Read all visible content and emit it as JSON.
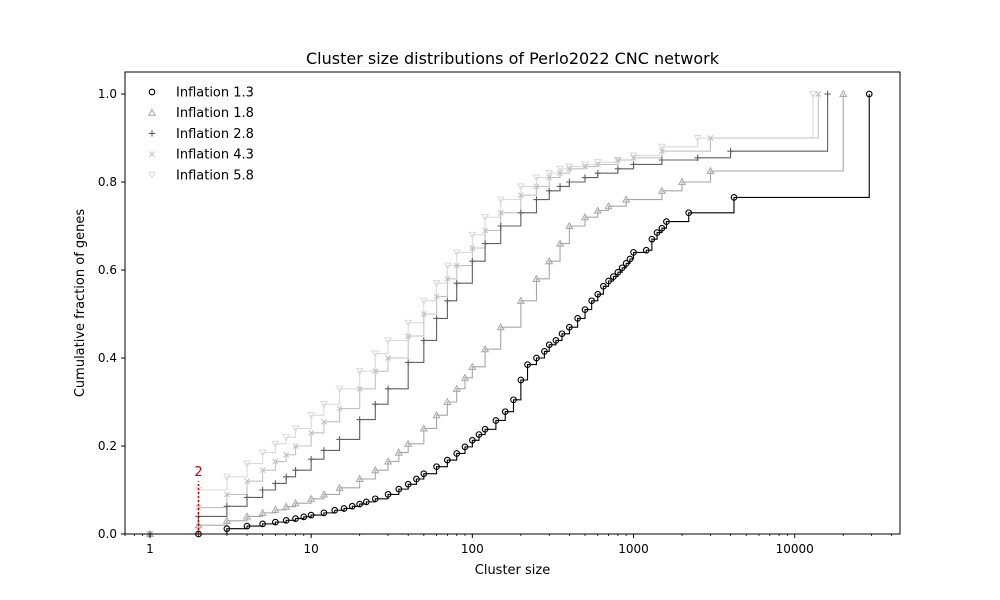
{
  "chart_data": {
    "type": "line",
    "title": "Cluster size distributions of Perlo2022 CNC network",
    "xlabel": "Cluster size",
    "ylabel": "Cumulative fraction of genes",
    "xscale": "log",
    "xlim": [
      0.7,
      45000
    ],
    "ylim": [
      0,
      1.05
    ],
    "xticks": [
      {
        "value": 1,
        "label": "1"
      },
      {
        "value": 10,
        "label": "10"
      },
      {
        "value": 100,
        "label": "100"
      },
      {
        "value": 1000,
        "label": "1000"
      },
      {
        "value": 10000,
        "label": "10000"
      }
    ],
    "yticks": [
      {
        "value": 0,
        "label": "0.0"
      },
      {
        "value": 0.2,
        "label": "0.2"
      },
      {
        "value": 0.4,
        "label": "0.4"
      },
      {
        "value": 0.6,
        "label": "0.6"
      },
      {
        "value": 0.8,
        "label": "0.8"
      },
      {
        "value": 1.0,
        "label": "1.0"
      }
    ],
    "grid": false,
    "legend_position": "top-left",
    "series": [
      {
        "name": "Inflation 1.3",
        "color": "#000000",
        "marker": "circle",
        "x": [
          2,
          3,
          4,
          5,
          6,
          7,
          8,
          9,
          10,
          12,
          14,
          16,
          18,
          20,
          22,
          25,
          30,
          35,
          40,
          45,
          50,
          60,
          70,
          80,
          90,
          100,
          110,
          120,
          140,
          160,
          180,
          200,
          220,
          250,
          280,
          300,
          330,
          360,
          400,
          450,
          500,
          550,
          600,
          650,
          700,
          750,
          800,
          850,
          900,
          950,
          1000,
          1200,
          1300,
          1400,
          1500,
          1600,
          2200,
          4200,
          29000
        ],
        "y": [
          0.0,
          0.012,
          0.018,
          0.023,
          0.027,
          0.031,
          0.035,
          0.039,
          0.043,
          0.048,
          0.054,
          0.058,
          0.063,
          0.068,
          0.073,
          0.08,
          0.09,
          0.102,
          0.113,
          0.125,
          0.137,
          0.153,
          0.168,
          0.183,
          0.198,
          0.213,
          0.226,
          0.238,
          0.258,
          0.278,
          0.305,
          0.35,
          0.385,
          0.4,
          0.415,
          0.43,
          0.44,
          0.455,
          0.47,
          0.49,
          0.51,
          0.53,
          0.545,
          0.563,
          0.575,
          0.585,
          0.595,
          0.605,
          0.615,
          0.625,
          0.64,
          0.645,
          0.67,
          0.685,
          0.695,
          0.71,
          0.73,
          0.765,
          1.0
        ]
      },
      {
        "name": "Inflation 1.8",
        "color": "#a6a6a6",
        "marker": "triangle",
        "x": [
          1,
          2,
          3,
          4,
          5,
          6,
          7,
          8,
          10,
          12,
          15,
          20,
          25,
          30,
          35,
          40,
          50,
          60,
          70,
          80,
          90,
          100,
          120,
          150,
          200,
          250,
          300,
          350,
          400,
          500,
          600,
          700,
          900,
          1500,
          2000,
          3000,
          20000
        ],
        "y": [
          0.0,
          0.02,
          0.03,
          0.04,
          0.048,
          0.055,
          0.062,
          0.07,
          0.08,
          0.09,
          0.105,
          0.125,
          0.145,
          0.165,
          0.185,
          0.205,
          0.24,
          0.27,
          0.3,
          0.33,
          0.355,
          0.38,
          0.42,
          0.47,
          0.53,
          0.58,
          0.62,
          0.66,
          0.7,
          0.72,
          0.735,
          0.745,
          0.76,
          0.78,
          0.8,
          0.825,
          1.0
        ]
      },
      {
        "name": "Inflation 2.8",
        "color": "#606060",
        "marker": "plus",
        "x": [
          1,
          2,
          3,
          4,
          5,
          6,
          7,
          8,
          10,
          12,
          15,
          20,
          25,
          30,
          40,
          50,
          60,
          70,
          80,
          100,
          120,
          150,
          200,
          250,
          300,
          350,
          400,
          500,
          600,
          800,
          1000,
          1500,
          2500,
          4000,
          16000
        ],
        "y": [
          0.0,
          0.04,
          0.063,
          0.083,
          0.1,
          0.115,
          0.13,
          0.145,
          0.17,
          0.19,
          0.215,
          0.26,
          0.295,
          0.33,
          0.39,
          0.44,
          0.49,
          0.53,
          0.57,
          0.62,
          0.66,
          0.7,
          0.73,
          0.76,
          0.78,
          0.79,
          0.8,
          0.81,
          0.82,
          0.83,
          0.84,
          0.85,
          0.855,
          0.87,
          1.0
        ]
      },
      {
        "name": "Inflation 4.3",
        "color": "#c2c2c2",
        "marker": "x",
        "x": [
          1,
          2,
          3,
          4,
          5,
          6,
          7,
          8,
          10,
          12,
          15,
          20,
          25,
          30,
          40,
          50,
          60,
          70,
          80,
          100,
          120,
          150,
          200,
          250,
          300,
          350,
          400,
          500,
          600,
          800,
          1000,
          1500,
          3000,
          14000
        ],
        "y": [
          0.0,
          0.06,
          0.09,
          0.12,
          0.145,
          0.165,
          0.18,
          0.2,
          0.23,
          0.255,
          0.285,
          0.33,
          0.37,
          0.4,
          0.45,
          0.5,
          0.54,
          0.58,
          0.61,
          0.65,
          0.69,
          0.73,
          0.77,
          0.79,
          0.81,
          0.82,
          0.83,
          0.835,
          0.84,
          0.85,
          0.855,
          0.87,
          0.9,
          1.0
        ]
      },
      {
        "name": "Inflation 5.8",
        "color": "#dadada",
        "marker": "triangle-down",
        "x": [
          1,
          2,
          3,
          4,
          5,
          6,
          7,
          8,
          10,
          12,
          15,
          20,
          25,
          30,
          40,
          50,
          60,
          70,
          80,
          100,
          120,
          150,
          200,
          250,
          300,
          350,
          400,
          500,
          600,
          800,
          1000,
          1500,
          2500,
          13000
        ],
        "y": [
          0.0,
          0.1,
          0.13,
          0.16,
          0.185,
          0.205,
          0.22,
          0.24,
          0.27,
          0.295,
          0.33,
          0.37,
          0.41,
          0.44,
          0.48,
          0.53,
          0.57,
          0.61,
          0.64,
          0.68,
          0.72,
          0.76,
          0.79,
          0.81,
          0.82,
          0.83,
          0.835,
          0.84,
          0.845,
          0.85,
          0.86,
          0.88,
          0.9,
          1.0
        ]
      }
    ],
    "annotation": {
      "label": "2",
      "x": 2,
      "y_top": 0.12,
      "color": "#cc0000"
    }
  }
}
